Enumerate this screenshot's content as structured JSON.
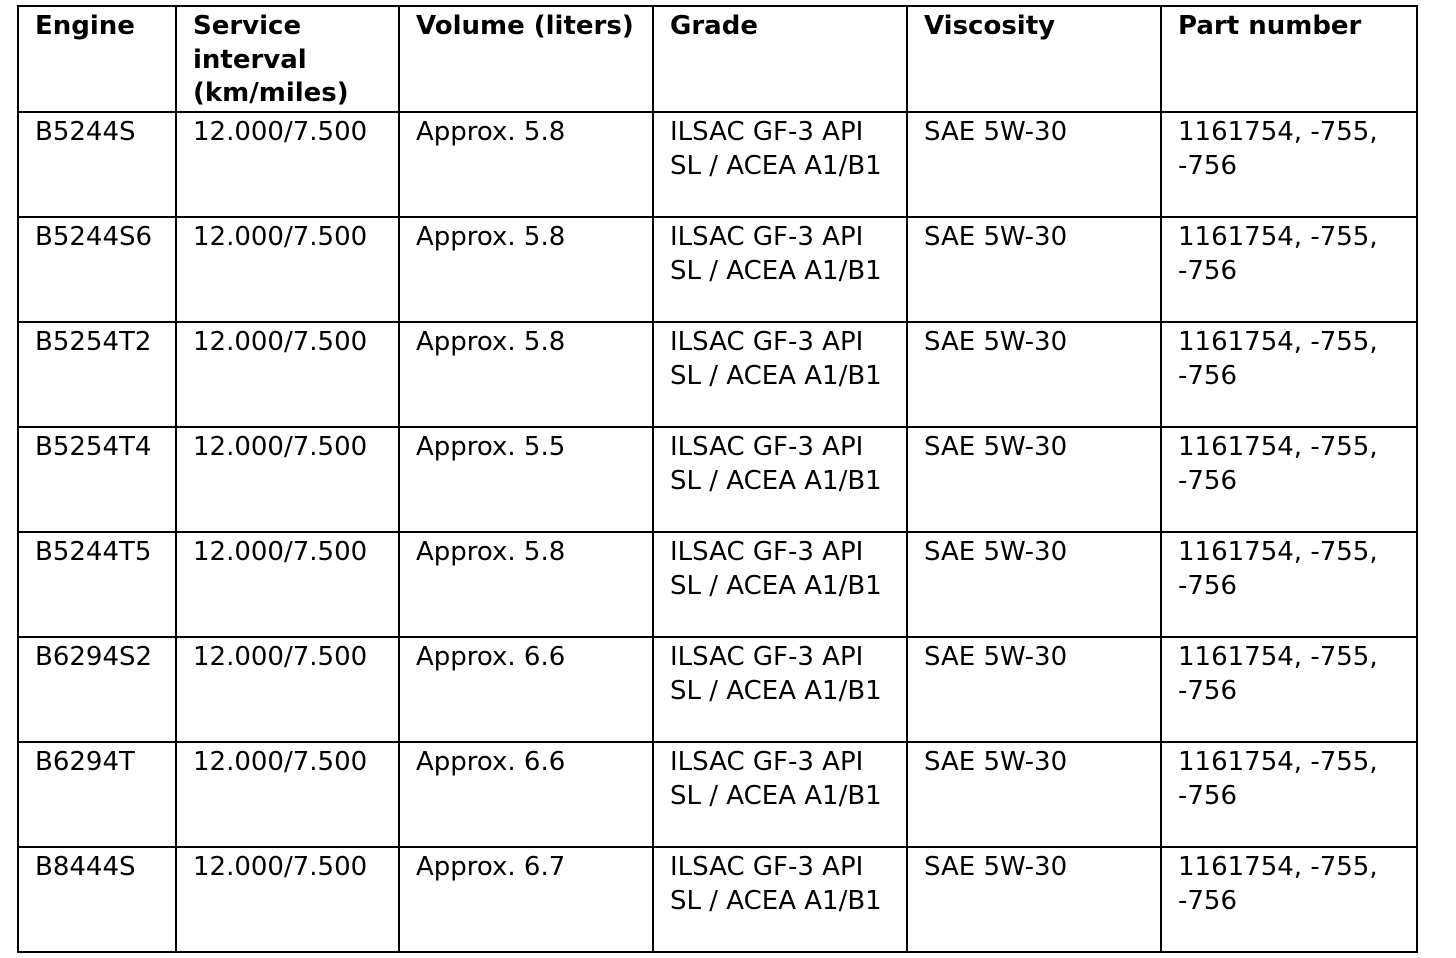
{
  "table": {
    "headers": [
      "Engine",
      "Service interval (km/miles)",
      "Volume (liters)",
      "Grade",
      "Viscosity",
      "Part number"
    ],
    "rows": [
      [
        "B5244S",
        "12.000/7.500",
        "Approx. 5.8",
        "ILSAC GF-3 API SL / ACEA A1/B1",
        "SAE 5W-30",
        "1161754, -755, -756"
      ],
      [
        "B5244S6",
        "12.000/7.500",
        "Approx. 5.8",
        "ILSAC GF-3 API SL / ACEA A1/B1",
        "SAE 5W-30",
        "1161754, -755, -756"
      ],
      [
        "B5254T2",
        "12.000/7.500",
        "Approx. 5.8",
        "ILSAC GF-3 API SL / ACEA A1/B1",
        "SAE 5W-30",
        "1161754, -755, -756"
      ],
      [
        "B5254T4",
        "12.000/7.500",
        "Approx. 5.5",
        "ILSAC GF-3 API SL / ACEA A1/B1",
        "SAE 5W-30",
        "1161754, -755, -756"
      ],
      [
        "B5244T5",
        "12.000/7.500",
        "Approx. 5.8",
        "ILSAC GF-3 API SL / ACEA A1/B1",
        "SAE 5W-30",
        "1161754, -755, -756"
      ],
      [
        "B6294S2",
        "12.000/7.500",
        "Approx. 6.6",
        "ILSAC GF-3 API SL / ACEA A1/B1",
        "SAE 5W-30",
        "1161754, -755, -756"
      ],
      [
        "B6294T",
        "12.000/7.500",
        "Approx. 6.6",
        "ILSAC GF-3 API SL / ACEA A1/B1",
        "SAE 5W-30",
        "1161754, -755, -756"
      ],
      [
        "B8444S",
        "12.000/7.500",
        "Approx. 6.7",
        "ILSAC GF-3 API SL / ACEA A1/B1",
        "SAE 5W-30",
        "1161754, -755, -756"
      ]
    ]
  }
}
